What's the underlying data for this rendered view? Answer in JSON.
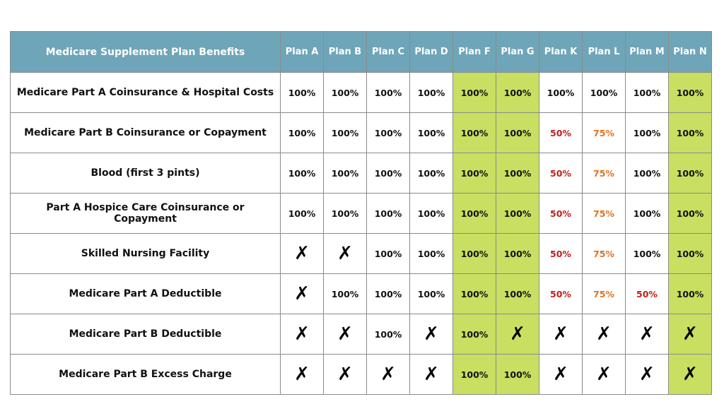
{
  "table": {
    "header_title": "Medicare Supplement Plan Benefits",
    "plans": [
      "Plan A",
      "Plan B",
      "Plan C",
      "Plan D",
      "Plan F",
      "Plan G",
      "Plan K",
      "Plan L",
      "Plan M",
      "Plan N"
    ],
    "highlight_plans": [
      "Plan F",
      "Plan G",
      "Plan N"
    ],
    "colors": {
      "header_bg": "#6fa5b8",
      "highlight_bg": "#c8df62",
      "value_50": "#c0201c",
      "value_75": "#e0721d"
    },
    "not_covered_symbol": "✗",
    "rows": [
      {
        "label": "Medicare Part A Coinsurance & Hospital Costs",
        "values": [
          "100%",
          "100%",
          "100%",
          "100%",
          "100%",
          "100%",
          "100%",
          "100%",
          "100%",
          "100%"
        ]
      },
      {
        "label": "Medicare Part B Coinsurance or Copayment",
        "values": [
          "100%",
          "100%",
          "100%",
          "100%",
          "100%",
          "100%",
          "50%",
          "75%",
          "100%",
          "100%"
        ]
      },
      {
        "label": "Blood (first 3 pints)",
        "values": [
          "100%",
          "100%",
          "100%",
          "100%",
          "100%",
          "100%",
          "50%",
          "75%",
          "100%",
          "100%"
        ]
      },
      {
        "label": "Part A Hospice Care Coinsurance or Copayment",
        "values": [
          "100%",
          "100%",
          "100%",
          "100%",
          "100%",
          "100%",
          "50%",
          "75%",
          "100%",
          "100%"
        ]
      },
      {
        "label": "Skilled Nursing Facility",
        "values": [
          "✗",
          "✗",
          "100%",
          "100%",
          "100%",
          "100%",
          "50%",
          "75%",
          "100%",
          "100%"
        ]
      },
      {
        "label": "Medicare Part A Deductible",
        "values": [
          "✗",
          "100%",
          "100%",
          "100%",
          "100%",
          "100%",
          "50%",
          "75%",
          "50%",
          "100%"
        ]
      },
      {
        "label": "Medicare Part B Deductible",
        "values": [
          "✗",
          "✗",
          "100%",
          "✗",
          "100%",
          "✗",
          "✗",
          "✗",
          "✗",
          "✗"
        ]
      },
      {
        "label": "Medicare Part B Excess Charge",
        "values": [
          "✗",
          "✗",
          "✗",
          "✗",
          "100%",
          "100%",
          "✗",
          "✗",
          "✗",
          "✗"
        ]
      }
    ]
  }
}
